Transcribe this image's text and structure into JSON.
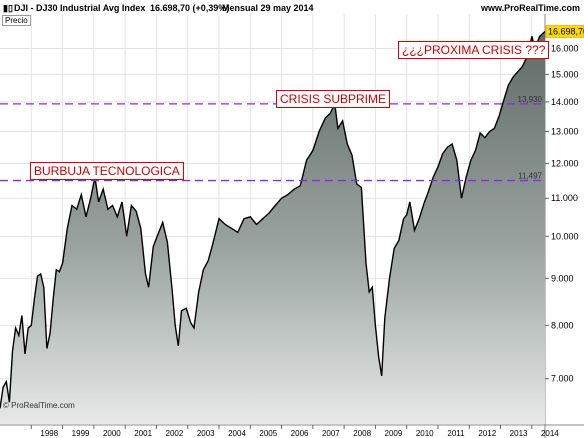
{
  "header": {
    "icon": "chart-icon",
    "symbol": "DJI - DJ30 Industrial Avg Index",
    "last": "16.698,70 (+0,39%)",
    "period": "Mensual  29 may 2014",
    "site": "www.ProRealTime.com"
  },
  "panel_label": "Precio",
  "footer_credit": "© ProRealTime.com",
  "annotations": {
    "burbuja": "BURBUJA TECNOLOGICA",
    "subprime": "CRISIS SUBPRIME",
    "proxima": "¿¿¿PROXIMA CRISIS ???"
  },
  "colors": {
    "hline": "#8a2be2",
    "current_price_box": "#ffd800",
    "annotation": "#e00000"
  },
  "chart_data": {
    "type": "area",
    "title": "DJI - DJ30 Industrial Avg Index",
    "xlabel": "",
    "ylabel": "",
    "scale": "log",
    "ylim": [
      6250,
      17100
    ],
    "x_ticks": [
      "1998",
      "1999",
      "2000",
      "2001",
      "2002",
      "2003",
      "2004",
      "2005",
      "2006",
      "2007",
      "2008",
      "2009",
      "2010",
      "2011",
      "2012",
      "2013",
      "2014"
    ],
    "y_ticks": [
      7000,
      8000,
      9000,
      10000,
      11000,
      12000,
      13000,
      14000,
      15000,
      16000
    ],
    "y_tick_labels": [
      "7.000",
      "8.000",
      "9.000",
      "10.000",
      "11.000",
      "12.000",
      "13.000",
      "14.000",
      "15.000",
      "16.000"
    ],
    "horizontal_lines": [
      {
        "value": 13930,
        "label": "13,930"
      },
      {
        "value": 11497,
        "label": "11,497"
      }
    ],
    "current_price": {
      "value": 16698.7,
      "label": "16.698,70"
    },
    "x": [
      1997.0,
      1997.1,
      1997.2,
      1997.3,
      1997.4,
      1997.5,
      1997.6,
      1997.7,
      1997.8,
      1997.9,
      1998.0,
      1998.1,
      1998.2,
      1998.3,
      1998.4,
      1998.5,
      1998.6,
      1998.7,
      1998.8,
      1998.9,
      1999.0,
      1999.15,
      1999.3,
      1999.45,
      1999.6,
      1999.75,
      1999.9,
      2000.0,
      2000.05,
      2000.15,
      2000.3,
      2000.45,
      2000.6,
      2000.75,
      2000.9,
      2001.05,
      2001.2,
      2001.35,
      2001.5,
      2001.65,
      2001.75,
      2001.9,
      2002.05,
      2002.2,
      2002.35,
      2002.5,
      2002.6,
      2002.7,
      2002.8,
      2002.95,
      2003.1,
      2003.2,
      2003.35,
      2003.5,
      2003.65,
      2003.8,
      2004.0,
      2004.2,
      2004.4,
      2004.6,
      2004.8,
      2005.0,
      2005.2,
      2005.4,
      2005.6,
      2005.8,
      2006.0,
      2006.2,
      2006.4,
      2006.6,
      2006.8,
      2007.0,
      2007.2,
      2007.4,
      2007.55,
      2007.7,
      2007.8,
      2007.95,
      2008.1,
      2008.25,
      2008.4,
      2008.55,
      2008.7,
      2008.8,
      2008.9,
      2009.0,
      2009.1,
      2009.2,
      2009.3,
      2009.45,
      2009.6,
      2009.75,
      2009.9,
      2010.0,
      2010.1,
      2010.25,
      2010.4,
      2010.55,
      2010.7,
      2010.85,
      2011.0,
      2011.15,
      2011.3,
      2011.45,
      2011.6,
      2011.75,
      2011.9,
      2012.05,
      2012.2,
      2012.35,
      2012.5,
      2012.65,
      2012.8,
      2012.95,
      2013.1,
      2013.25,
      2013.4,
      2013.55,
      2013.7,
      2013.85,
      2014.0,
      2014.1,
      2014.25,
      2014.42
    ],
    "values": [
      6500,
      6850,
      6950,
      6600,
      7500,
      7950,
      7800,
      8200,
      7450,
      7950,
      8000,
      8550,
      9050,
      9100,
      8800,
      7550,
      7850,
      8550,
      9200,
      9150,
      9350,
      10200,
      10800,
      10700,
      11100,
      10500,
      11000,
      11450,
      11500,
      10900,
      11250,
      10700,
      10800,
      10500,
      10900,
      10000,
      10800,
      10650,
      10200,
      9100,
      8800,
      9750,
      10050,
      10350,
      9850,
      8750,
      8000,
      7600,
      8300,
      8350,
      8050,
      7950,
      8700,
      9200,
      9400,
      9800,
      10450,
      10300,
      10200,
      10100,
      10450,
      10500,
      10300,
      10450,
      10600,
      10800,
      11000,
      11100,
      11250,
      11350,
      12100,
      12400,
      13000,
      13450,
      13600,
      13930,
      13100,
      13350,
      12600,
      12250,
      11400,
      11300,
      9350,
      8700,
      8800,
      8000,
      7400,
      7050,
      8150,
      9000,
      9700,
      9900,
      10450,
      10550,
      10900,
      10150,
      10450,
      10850,
      11200,
      11600,
      11900,
      12300,
      12500,
      12600,
      12100,
      11000,
      11600,
      12100,
      12400,
      12950,
      12800,
      13000,
      13100,
      13500,
      14050,
      14600,
      14900,
      15100,
      15300,
      15700,
      16500,
      16000,
      16500,
      16698
    ]
  }
}
